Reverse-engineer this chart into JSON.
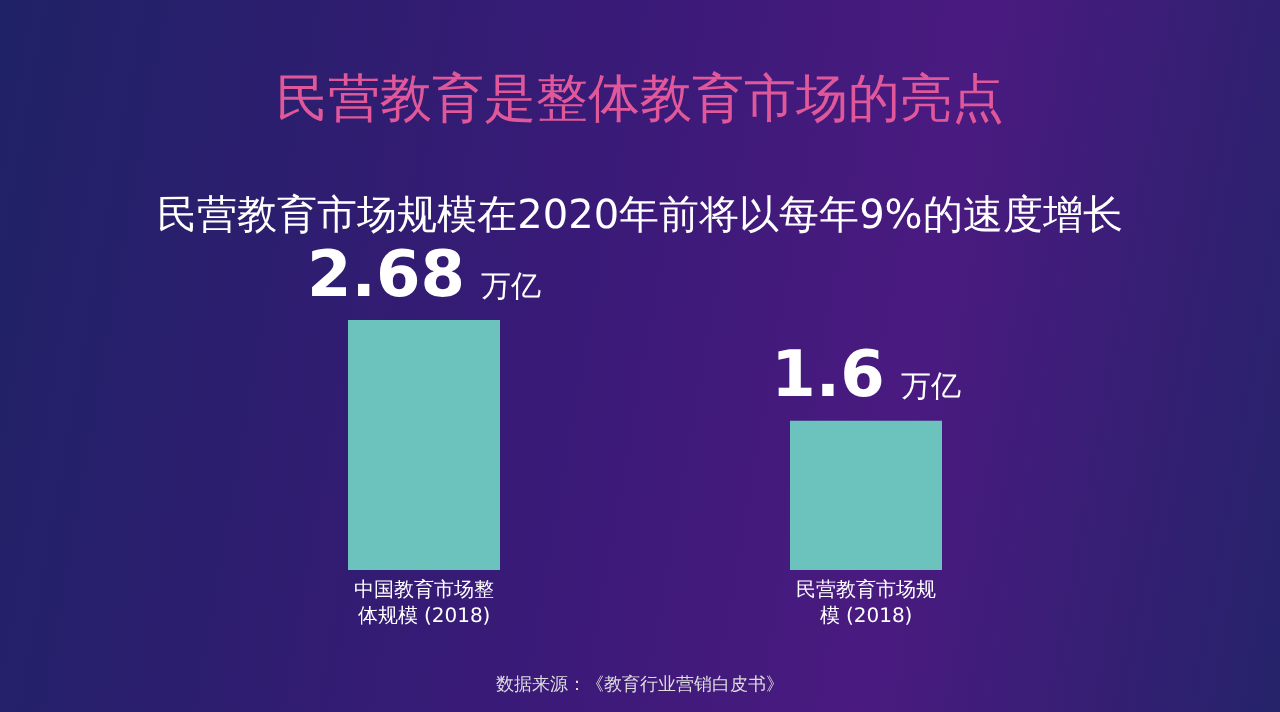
{
  "chart_data": {
    "type": "bar",
    "title": "民营教育是整体教育市场的亮点",
    "subtitle": "民营教育市场规模在2020年前将以每年9%的速度增长",
    "categories": [
      "中国教育市场整体规模 (2018)",
      "民营教育市场规模 (2018)"
    ],
    "values": [
      2.68,
      1.6
    ],
    "color": "#6cc3bd",
    "data_labels": true,
    "value_labels": [
      "2.68",
      "1.6"
    ],
    "ylabel": "万亿",
    "annotations": [
      "数据来源：《教育行业营销白皮书》"
    ]
  }
}
